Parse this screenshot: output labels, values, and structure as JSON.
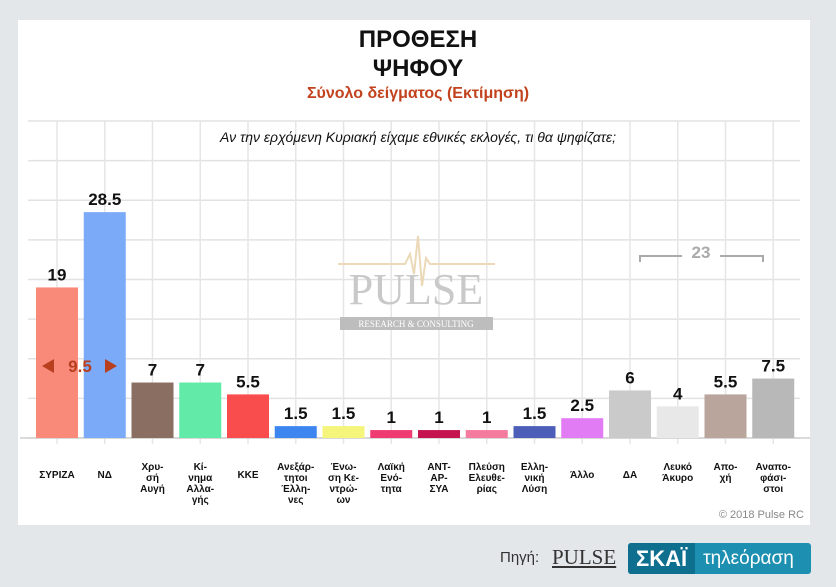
{
  "header": {
    "title_line1": "ΠΡΟΘΕΣΗ",
    "title_line2": "ΨΗΦΟΥ",
    "subtitle": "Σύνολο δείγματος   (Εκτίμηση)",
    "question": "Αν την ερχόμενη Κυριακή είχαμε εθνικές εκλογές, τι θα ψηφίζατε;"
  },
  "chart_data": {
    "type": "bar",
    "title": "ΠΡΟΘΕΣΗ ΨΗΦΟΥ",
    "ylim": [
      0,
      40
    ],
    "grid": true,
    "categories": [
      [
        "ΣΥΡΙΖΑ"
      ],
      [
        "ΝΔ"
      ],
      [
        "Χρυ-",
        "σή",
        "Αυγή"
      ],
      [
        "Κί-",
        "νημα",
        "Αλλα-",
        "γής"
      ],
      [
        "ΚΚΕ"
      ],
      [
        "Ανεξάρ-",
        "τητοι",
        "Έλλη-",
        "νες"
      ],
      [
        "Ένω-",
        "ση Κε-",
        "ντρώ-",
        "ων"
      ],
      [
        "Λαϊκή",
        "Ενό-",
        "τητα"
      ],
      [
        "ΑΝΤ-",
        "ΑΡ-",
        "ΣΥΑ"
      ],
      [
        "Πλεύση",
        "Ελευθε-",
        "ρίας"
      ],
      [
        "Ελλη-",
        "νική",
        "Λύση"
      ],
      [
        "Άλλο"
      ],
      [
        "ΔΑ"
      ],
      [
        "Λευκό",
        "Άκυρο"
      ],
      [
        "Απο-",
        "χή"
      ],
      [
        "Αναπο-",
        "φάσι-",
        "στοι"
      ]
    ],
    "values": [
      19,
      28.5,
      7,
      7,
      5.5,
      1.5,
      1.5,
      1,
      1,
      1,
      1.5,
      2.5,
      6,
      4,
      5.5,
      7.5
    ],
    "value_labels": [
      "19",
      "28.5",
      "7",
      "7",
      "5.5",
      "1.5",
      "1.5",
      "1",
      "1",
      "1",
      "1.5",
      "2.5",
      "6",
      "4",
      "5.5",
      "7.5"
    ],
    "colors": [
      "#f98a7a",
      "#7aaaf8",
      "#8b6e62",
      "#62eaa8",
      "#f94c4c",
      "#3d86f0",
      "#f4f57a",
      "#ef3a72",
      "#c4134f",
      "#f57b9e",
      "#4c5eb8",
      "#e27cf4",
      "#cacaca",
      "#e8e8e8",
      "#baa59d",
      "#b8b8b8"
    ],
    "annotations": {
      "gap_label": "9.5",
      "gap_color": "#b8401e",
      "group_label": "23",
      "group_color": "#aaaaaa"
    }
  },
  "watermark": {
    "line1": "PULSE",
    "line2": "RESEARCH & CONSULTING"
  },
  "footer": {
    "copyright": "© 2018 Pulse RC",
    "source_label": "Πηγή:",
    "pulse_logo": "PULSE",
    "skai": "ΣΚΑΪ",
    "skai_tv": "τηλεόραση"
  }
}
